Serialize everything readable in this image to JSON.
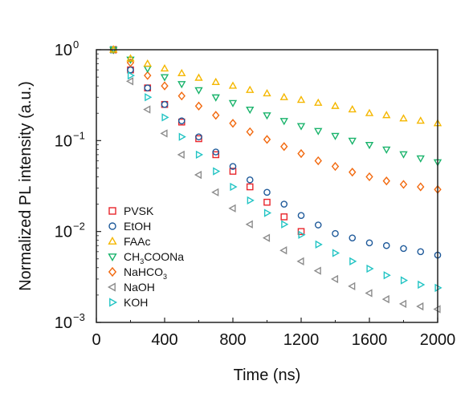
{
  "chart_data": {
    "type": "scatter",
    "title": "",
    "xlabel": "Time (ns)",
    "ylabel": "Normalized PL intensity (a.u.)",
    "xlim": [
      0,
      2000
    ],
    "ylim": [
      0.001,
      1
    ],
    "yscale": "log",
    "xticks": [
      "0",
      "400",
      "800",
      "1200",
      "1600",
      "2000"
    ],
    "yticks": [
      {
        "base": "10",
        "exp": "0"
      },
      {
        "base": "10",
        "exp": "−1"
      },
      {
        "base": "10",
        "exp": "−2"
      },
      {
        "base": "10",
        "exp": "−3"
      }
    ],
    "legend_position": "bottom-left",
    "series": [
      {
        "name": "PVSK",
        "label_main": "PVSK",
        "label_sub": "",
        "label_tail": "",
        "marker": "square",
        "color": "#e8262c",
        "x": [
          100,
          200,
          300,
          400,
          500,
          600,
          700,
          800,
          900,
          1000,
          1100,
          1200
        ],
        "y": [
          1.0,
          0.6,
          0.38,
          0.25,
          0.16,
          0.105,
          0.07,
          0.046,
          0.031,
          0.021,
          0.0145,
          0.01
        ]
      },
      {
        "name": "EtOH",
        "label_main": "EtOH",
        "label_sub": "",
        "label_tail": "",
        "marker": "circle",
        "color": "#1f5a9a",
        "x": [
          100,
          200,
          300,
          400,
          500,
          600,
          700,
          800,
          900,
          1000,
          1100,
          1200,
          1300,
          1400,
          1500,
          1600,
          1700,
          1800,
          1900,
          2000
        ],
        "y": [
          1.0,
          0.6,
          0.38,
          0.25,
          0.165,
          0.11,
          0.075,
          0.052,
          0.037,
          0.027,
          0.02,
          0.015,
          0.0118,
          0.0095,
          0.0085,
          0.0075,
          0.007,
          0.0065,
          0.006,
          0.0055
        ]
      },
      {
        "name": "FAAc",
        "label_main": "FAAc",
        "label_sub": "",
        "label_tail": "",
        "marker": "triangle-up",
        "color": "#f5b700",
        "x": [
          100,
          200,
          300,
          400,
          500,
          600,
          700,
          800,
          900,
          1000,
          1100,
          1200,
          1300,
          1400,
          1500,
          1600,
          1700,
          1800,
          1900,
          2000
        ],
        "y": [
          1.0,
          0.8,
          0.7,
          0.62,
          0.55,
          0.49,
          0.44,
          0.4,
          0.36,
          0.33,
          0.3,
          0.28,
          0.26,
          0.24,
          0.22,
          0.2,
          0.19,
          0.175,
          0.165,
          0.155
        ]
      },
      {
        "name": "CH3COONa",
        "label_main": "CH",
        "label_sub": "3",
        "label_tail": "COONa",
        "marker": "triangle-down",
        "color": "#19b36b",
        "x": [
          100,
          200,
          300,
          400,
          500,
          600,
          700,
          800,
          900,
          1000,
          1100,
          1200,
          1300,
          1400,
          1500,
          1600,
          1700,
          1800,
          1900,
          2000
        ],
        "y": [
          1.0,
          0.78,
          0.62,
          0.5,
          0.42,
          0.36,
          0.3,
          0.26,
          0.22,
          0.19,
          0.165,
          0.145,
          0.128,
          0.113,
          0.1,
          0.09,
          0.08,
          0.071,
          0.064,
          0.058
        ]
      },
      {
        "name": "NaHCO3",
        "label_main": "NaHCO",
        "label_sub": "3",
        "label_tail": "",
        "marker": "diamond",
        "color": "#f26a10",
        "x": [
          100,
          200,
          300,
          400,
          500,
          600,
          700,
          800,
          900,
          1000,
          1100,
          1200,
          1300,
          1400,
          1500,
          1600,
          1700,
          1800,
          1900,
          2000
        ],
        "y": [
          1.0,
          0.72,
          0.52,
          0.4,
          0.31,
          0.24,
          0.19,
          0.155,
          0.125,
          0.103,
          0.086,
          0.072,
          0.06,
          0.052,
          0.045,
          0.04,
          0.036,
          0.033,
          0.031,
          0.029
        ]
      },
      {
        "name": "NaOH",
        "label_main": "NaOH",
        "label_sub": "",
        "label_tail": "",
        "marker": "triangle-left",
        "color": "#8c8c8c",
        "x": [
          100,
          200,
          300,
          400,
          500,
          600,
          700,
          800,
          900,
          1000,
          1100,
          1200,
          1300,
          1400,
          1500,
          1600,
          1700,
          1800,
          1900,
          2000
        ],
        "y": [
          1.0,
          0.45,
          0.22,
          0.12,
          0.07,
          0.042,
          0.027,
          0.018,
          0.012,
          0.0085,
          0.0062,
          0.0047,
          0.0037,
          0.003,
          0.0025,
          0.0021,
          0.0018,
          0.0016,
          0.0015,
          0.0014
        ]
      },
      {
        "name": "KOH",
        "label_main": "KOH",
        "label_sub": "",
        "label_tail": "",
        "marker": "triangle-right",
        "color": "#22c4c4",
        "x": [
          100,
          200,
          300,
          400,
          500,
          600,
          700,
          800,
          900,
          1000,
          1100,
          1200,
          1300,
          1400,
          1500,
          1600,
          1700,
          1800,
          1900,
          2000
        ],
        "y": [
          1.0,
          0.52,
          0.3,
          0.18,
          0.11,
          0.07,
          0.046,
          0.031,
          0.022,
          0.016,
          0.012,
          0.0092,
          0.0072,
          0.0058,
          0.0047,
          0.0039,
          0.0033,
          0.0029,
          0.0026,
          0.0024
        ]
      }
    ]
  }
}
